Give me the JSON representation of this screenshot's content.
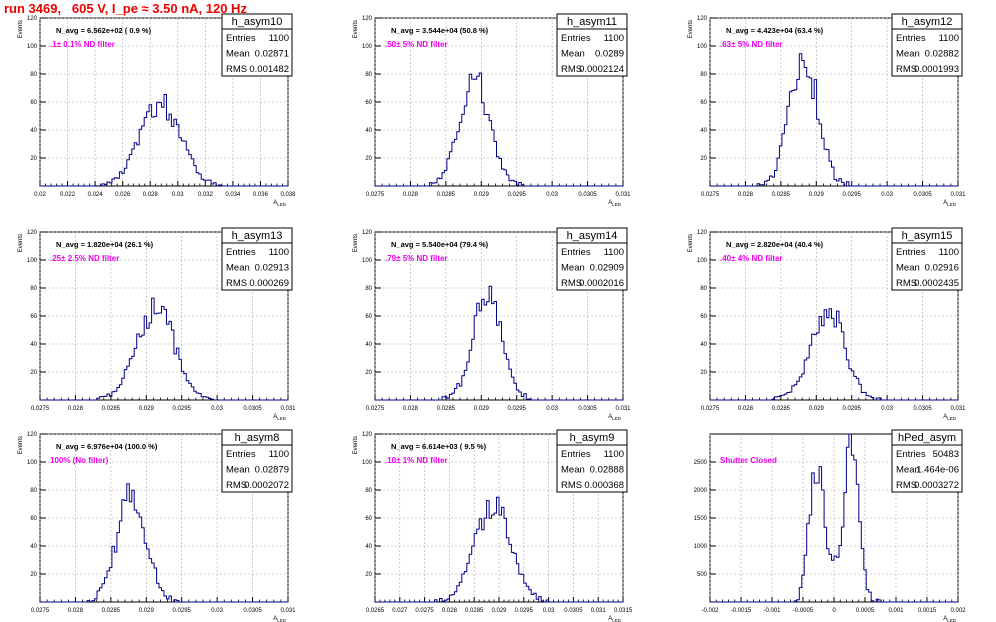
{
  "header": {
    "run_label": "run 3469,   605 V, I_pe ≈ 3.50 nA, 120 Hz"
  },
  "chart_data": [
    {
      "type": "histogram",
      "name": "h_asym10",
      "navg_label": "N_avg = 6.562e+02 ( 0.9 %)",
      "filter_label": ".1± 0.1% ND filter",
      "stats": {
        "entries_label": "Entries",
        "entries": "1100",
        "mean_label": "Mean",
        "mean": "0.02871",
        "rms_label": "RMS",
        "rms": "0.001482"
      },
      "ylabel": "Events",
      "xlabel": "A_LED",
      "xlim": [
        0.02,
        0.038
      ],
      "ylim": [
        0,
        120
      ],
      "xticks": [
        "0.02",
        "0.022",
        "0.024",
        "0.026",
        "0.028",
        "0.03",
        "0.032",
        "0.034",
        "0.036",
        "0.038"
      ],
      "yticks": [
        "20",
        "40",
        "60",
        "80",
        "100",
        "120"
      ],
      "bin_width": 0.00018,
      "center": 0.02871,
      "sigma": 0.00148,
      "peak": 60,
      "bimodal": false
    },
    {
      "type": "histogram",
      "name": "h_asym11",
      "navg_label": "N_avg = 3.544e+04 (50.8 %)",
      "filter_label": ".50± 5% ND filter",
      "stats": {
        "entries_label": "Entries",
        "entries": "1100",
        "mean_label": "Mean",
        "mean": "0.0289",
        "rms_label": "RMS",
        "rms": "0.0002124"
      },
      "ylabel": "Events",
      "xlabel": "A_LED",
      "xlim": [
        0.0275,
        0.031
      ],
      "ylim": [
        0,
        120
      ],
      "xticks": [
        "0.0275",
        "0.028",
        "0.0285",
        "0.029",
        "0.0295",
        "0.03",
        "0.0305",
        "0.031"
      ],
      "yticks": [
        "20",
        "40",
        "60",
        "80",
        "100",
        "120"
      ],
      "bin_width": 3.5e-05,
      "center": 0.0289,
      "sigma": 0.00021,
      "peak": 80,
      "bimodal": false
    },
    {
      "type": "histogram",
      "name": "h_asym12",
      "navg_label": "N_avg = 4.423e+04 (63.4 %)",
      "filter_label": ".63± 5% ND filter",
      "stats": {
        "entries_label": "Entries",
        "entries": "1100",
        "mean_label": "Mean",
        "mean": "0.02882",
        "rms_label": "RMS",
        "rms": "0.0001993"
      },
      "ylabel": "Events",
      "xlabel": "A_LED",
      "xlim": [
        0.0275,
        0.031
      ],
      "ylim": [
        0,
        120
      ],
      "xticks": [
        "0.0275",
        "0.028",
        "0.0285",
        "0.029",
        "0.0295",
        "0.03",
        "0.0305",
        "0.031"
      ],
      "yticks": [
        "20",
        "40",
        "60",
        "80",
        "100",
        "120"
      ],
      "bin_width": 3.5e-05,
      "center": 0.02882,
      "sigma": 0.0002,
      "peak": 95,
      "bimodal": false
    },
    {
      "type": "histogram",
      "name": "h_asym13",
      "navg_label": "N_avg = 1.820e+04 (26.1 %)",
      "filter_label": ".25± 2.5% ND filter",
      "stats": {
        "entries_label": "Entries",
        "entries": "1100",
        "mean_label": "Mean",
        "mean": "0.02913",
        "rms_label": "RMS",
        "rms": "0.000269"
      },
      "ylabel": "Events",
      "xlabel": "A_LED",
      "xlim": [
        0.0275,
        0.031
      ],
      "ylim": [
        0,
        120
      ],
      "xticks": [
        "0.0275",
        "0.028",
        "0.0285",
        "0.029",
        "0.0295",
        "0.03",
        "0.0305",
        "0.031"
      ],
      "yticks": [
        "20",
        "40",
        "60",
        "80",
        "100",
        "120"
      ],
      "bin_width": 3.5e-05,
      "center": 0.02913,
      "sigma": 0.00027,
      "peak": 68,
      "bimodal": false
    },
    {
      "type": "histogram",
      "name": "h_asym14",
      "navg_label": "N_avg = 5.540e+04 (79.4 %)",
      "filter_label": ".79± 5% ND filter",
      "stats": {
        "entries_label": "Entries",
        "entries": "1100",
        "mean_label": "Mean",
        "mean": "0.02909",
        "rms_label": "RMS",
        "rms": "0.0002016"
      },
      "ylabel": "Events",
      "xlabel": "A_LED",
      "xlim": [
        0.0275,
        0.031
      ],
      "ylim": [
        0,
        120
      ],
      "xticks": [
        "0.0275",
        "0.028",
        "0.0285",
        "0.029",
        "0.0295",
        "0.03",
        "0.0305",
        "0.031"
      ],
      "yticks": [
        "20",
        "40",
        "60",
        "80",
        "100",
        "120"
      ],
      "bin_width": 3.5e-05,
      "center": 0.02909,
      "sigma": 0.0002,
      "peak": 80,
      "bimodal": false
    },
    {
      "type": "histogram",
      "name": "h_asym15",
      "navg_label": "N_avg = 2.820e+04 (40.4 %)",
      "filter_label": ".40± 4% ND filter",
      "stats": {
        "entries_label": "Entries",
        "entries": "1100",
        "mean_label": "Mean",
        "mean": "0.02916",
        "rms_label": "RMS",
        "rms": "0.0002435"
      },
      "ylabel": "Events",
      "xlabel": "A_LED",
      "xlim": [
        0.0275,
        0.031
      ],
      "ylim": [
        0,
        120
      ],
      "xticks": [
        "0.0275",
        "0.028",
        "0.0285",
        "0.029",
        "0.0295",
        "0.03",
        "0.0305",
        "0.031"
      ],
      "yticks": [
        "20",
        "40",
        "60",
        "80",
        "100",
        "120"
      ],
      "bin_width": 3.5e-05,
      "center": 0.02916,
      "sigma": 0.00024,
      "peak": 67,
      "bimodal": false
    },
    {
      "type": "histogram",
      "name": "h_asym8",
      "navg_label": "N_avg = 6.976e+04 (100.0 %)",
      "filter_label": "100% (No filter)",
      "stats": {
        "entries_label": "Entries",
        "entries": "1100",
        "mean_label": "Mean",
        "mean": "0.02879",
        "rms_label": "RMS",
        "rms": "0.0002072"
      },
      "ylabel": "Events",
      "xlabel": "A_LED",
      "xlim": [
        0.0275,
        0.031
      ],
      "ylim": [
        0,
        120
      ],
      "xticks": [
        "0.0275",
        "0.028",
        "0.0285",
        "0.029",
        "0.0295",
        "0.03",
        "0.0305",
        "0.031"
      ],
      "yticks": [
        "20",
        "40",
        "60",
        "80",
        "100",
        "120"
      ],
      "bin_width": 3.5e-05,
      "center": 0.02879,
      "sigma": 0.00021,
      "peak": 78,
      "bimodal": false
    },
    {
      "type": "histogram",
      "name": "h_asym9",
      "navg_label": "N_avg = 6.614e+03 ( 9.5 %)",
      "filter_label": ".10± 1% ND filter",
      "stats": {
        "entries_label": "Entries",
        "entries": "1100",
        "mean_label": "Mean",
        "mean": "0.02888",
        "rms_label": "RMS",
        "rms": "0.000368"
      },
      "ylabel": "Events",
      "xlabel": "A_LED",
      "xlim": [
        0.0265,
        0.0315
      ],
      "ylim": [
        0,
        120
      ],
      "xticks": [
        "0.0265",
        "0.027",
        "0.0275",
        "0.028",
        "0.0285",
        "0.029",
        "0.0295",
        "0.03",
        "0.0305",
        "0.031",
        "0.0315"
      ],
      "yticks": [
        "20",
        "40",
        "60",
        "80",
        "100",
        "120"
      ],
      "bin_width": 5e-05,
      "center": 0.02888,
      "sigma": 0.00037,
      "peak": 70,
      "bimodal": false
    },
    {
      "type": "histogram",
      "name": "hPed_asym",
      "navg_label": "",
      "filter_label": "Shutter Closed",
      "stats": {
        "entries_label": "Entries",
        "entries": "50483",
        "mean_label": "Mean",
        "mean": "1.464e-06",
        "rms_label": "RMS",
        "rms": "0.0003272"
      },
      "ylabel": "",
      "xlabel": "A_LED",
      "xlim": [
        -0.002,
        0.002
      ],
      "ylim": [
        0,
        3000
      ],
      "xticks": [
        "-0.002",
        "-0.0015",
        "-0.001",
        "-0.0005",
        "0",
        "0.0005",
        "0.001",
        "0.0015",
        "0.002"
      ],
      "yticks": [
        "500",
        "1000",
        "1500",
        "2000",
        "2500"
      ],
      "bin_width": 4e-05,
      "center": 0.0,
      "sigma": 0.00012,
      "peak": 2800,
      "bimodal": true,
      "split": 0.00028
    }
  ]
}
